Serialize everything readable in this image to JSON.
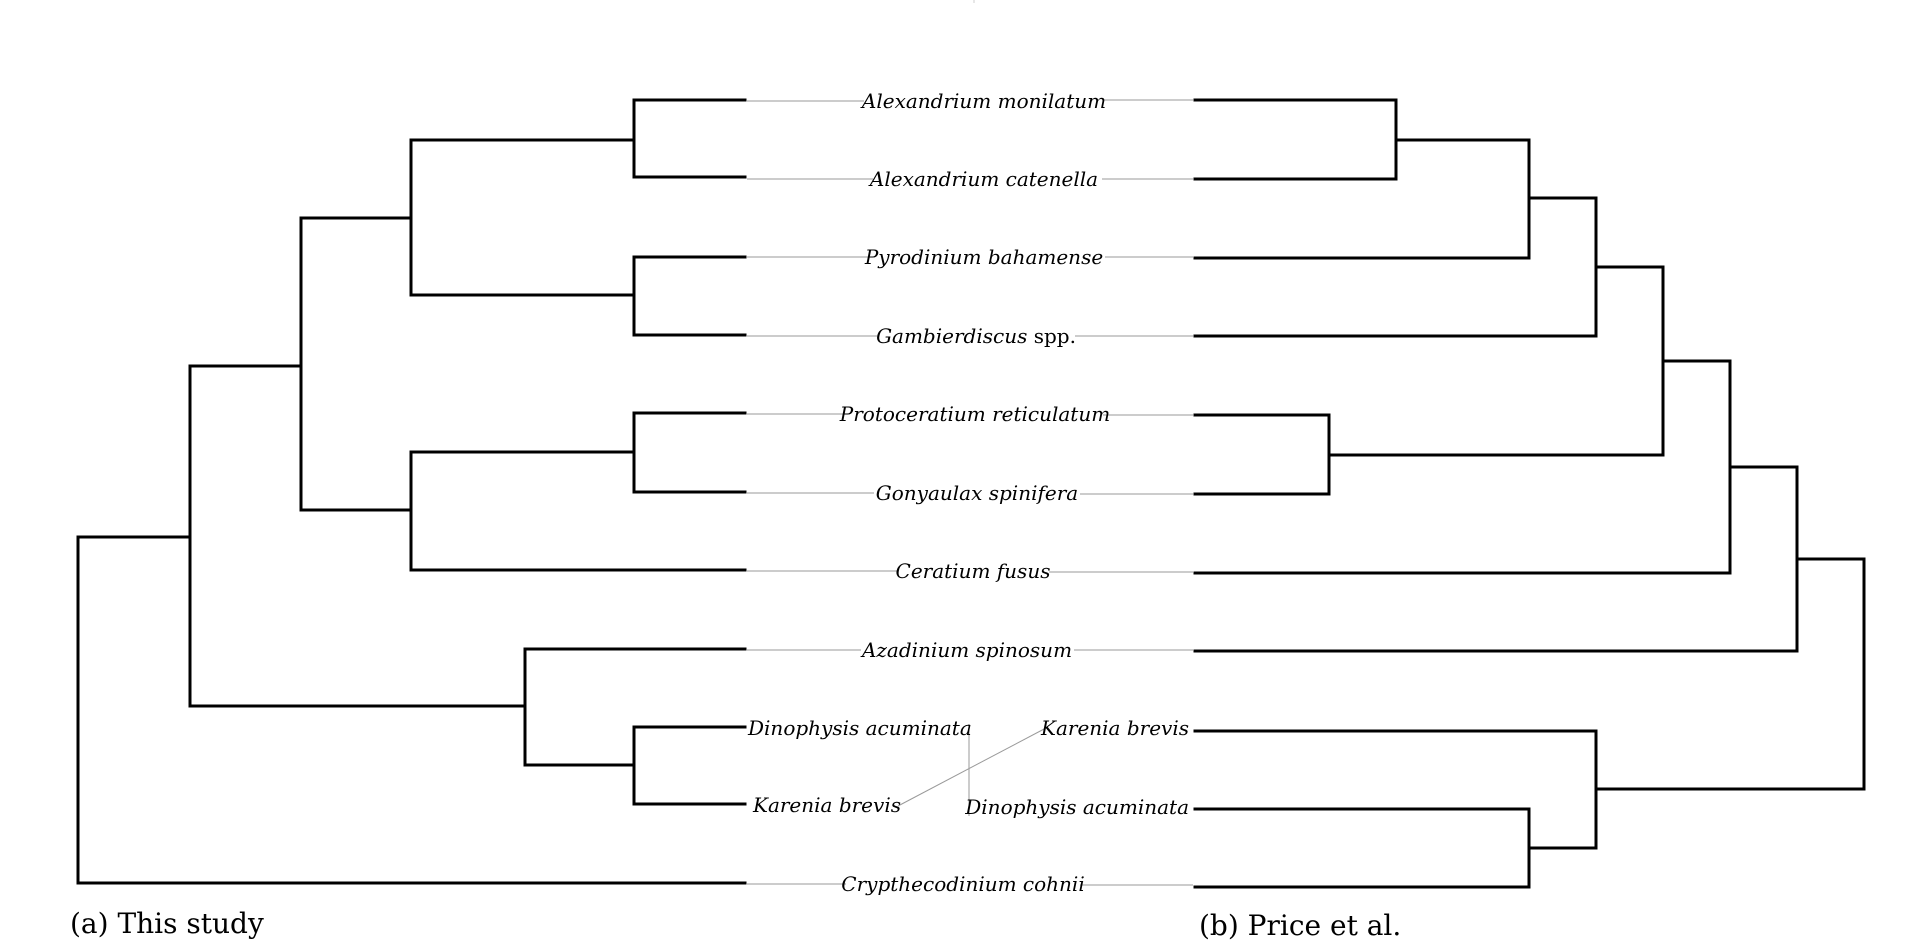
{
  "taxa_left": [
    {
      "id": "a_mon",
      "genus": "Alexandrium monilatum",
      "suffix": ""
    },
    {
      "id": "a_cat",
      "genus": "Alexandrium catenella",
      "suffix": ""
    },
    {
      "id": "p_bah",
      "genus": "Pyrodinium bahamense",
      "suffix": ""
    },
    {
      "id": "gamb",
      "genus": "Gambierdiscus",
      "suffix": " spp."
    },
    {
      "id": "p_ret",
      "genus": "Protoceratium reticulatum",
      "suffix": ""
    },
    {
      "id": "g_spi",
      "genus": "Gonyaulax spinifera",
      "suffix": ""
    },
    {
      "id": "c_fus",
      "genus": "Ceratium fusus",
      "suffix": ""
    },
    {
      "id": "a_spi",
      "genus": "Azadinium spinosum",
      "suffix": ""
    },
    {
      "id": "d_acu",
      "genus": "Dinophysis acuminata",
      "suffix": ""
    },
    {
      "id": "k_bre",
      "genus": "Karenia brevis",
      "suffix": ""
    },
    {
      "id": "c_coh",
      "genus": "Crypthecodinium cohnii",
      "suffix": ""
    }
  ],
  "taxa_right_swapped": [
    {
      "id": "k_bre_r",
      "genus": "Karenia brevis",
      "suffix": ""
    },
    {
      "id": "d_acu_r",
      "genus": "Dinophysis acuminata",
      "suffix": ""
    }
  ],
  "panels": {
    "left": "(a) This study",
    "right": "(b) Price et al."
  },
  "tree_left": "((((((Alexandrium monilatum,Alexandrium catenella),(Pyrodinium bahamense,Gambierdiscus spp.)),((Protoceratium reticulatum,Gonyaulax spinifera),Ceratium fusus)),(Azadinium spinosum,(Dinophysis acuminata,Karenia brevis))),Crypthecodinium cohnii)",
  "tree_right": "((((((Alexandrium monilatum,Alexandrium catenella),Pyrodinium bahamense),Gambierdiscus spp.),(Protoceratium reticulatum,Gonyaulax spinifera)),Ceratium fusus),Azadinium spinosum),(Karenia brevis,(Dinophysis acuminata,Crypthecodinium cohnii))"
}
